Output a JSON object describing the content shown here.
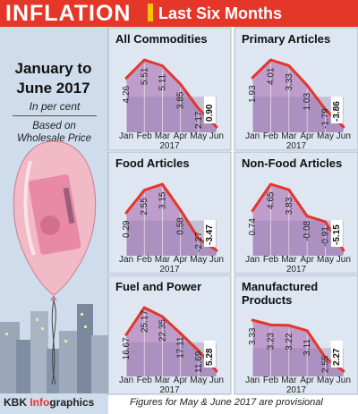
{
  "header": {
    "title": "INFLATION",
    "subtitle": "Last Six Months"
  },
  "sidebar": {
    "period_line1": "January to",
    "period_line2": "June 2017",
    "unit": "In per cent",
    "basis_line1": "Based on",
    "basis_line2": "Wholesale Price Index,",
    "basis_line3": "2011-12=100"
  },
  "footer": {
    "credit_prefix": "KBK ",
    "credit_accent": "Info",
    "credit_suffix": "graphics",
    "note": "Figures for May & June 2017 are provisional"
  },
  "colors": {
    "header_red": "#e5362a",
    "line_red": "#e5362a",
    "area_fill": "#b98fc4",
    "area_shade": "#8c78a8",
    "panel_bg": "#dde6f1",
    "last_value_box": "#ffffff"
  },
  "chart_data": [
    {
      "type": "area",
      "title": "All Commodities",
      "categories": [
        "Jan",
        "Feb",
        "Mar",
        "Apr",
        "May",
        "Jun"
      ],
      "values": [
        4.26,
        5.51,
        5.11,
        3.85,
        2.17,
        0.9
      ],
      "labels": [
        "4.26",
        "5.51",
        "5.11",
        "3.85",
        "2.17",
        "0.90"
      ],
      "xlabel": "2017"
    },
    {
      "type": "area",
      "title": "Primary Articles",
      "categories": [
        "Jan",
        "Feb",
        "Mar",
        "Apr",
        "May",
        "Jun"
      ],
      "values": [
        1.93,
        4.01,
        3.33,
        1.03,
        -1.79,
        -3.86
      ],
      "labels": [
        "1.93",
        "4.01",
        "3.33",
        "1.03",
        "-1.79",
        "-3.86"
      ],
      "xlabel": "2017"
    },
    {
      "type": "area",
      "title": "Food Articles",
      "categories": [
        "Jan",
        "Feb",
        "Mar",
        "Apr",
        "May",
        "Jun"
      ],
      "values": [
        0.29,
        2.55,
        3.15,
        0.58,
        -2.27,
        -3.47
      ],
      "labels": [
        "0.29",
        "2.55",
        "3.15",
        "0.58",
        "-2.27",
        "-3.47"
      ],
      "xlabel": "2017"
    },
    {
      "type": "area",
      "title": "Non-Food Articles",
      "categories": [
        "Jan",
        "Feb",
        "Mar",
        "Apr",
        "May",
        "Jun"
      ],
      "values": [
        0.74,
        4.65,
        3.83,
        -0.08,
        -0.91,
        -5.15
      ],
      "labels": [
        "0.74",
        "4.65",
        "3.83",
        "-0.08",
        "-0.91",
        "-5.15"
      ],
      "xlabel": "2017"
    },
    {
      "type": "area",
      "title": "Fuel and Power",
      "categories": [
        "Jan",
        "Feb",
        "Mar",
        "Apr",
        "May",
        "Jun"
      ],
      "values": [
        16.67,
        25.17,
        22.35,
        17.11,
        11.69,
        5.28
      ],
      "labels": [
        "16.67",
        "25.17",
        "22.35",
        "17.11",
        "11.69",
        "5.28"
      ],
      "xlabel": "2017"
    },
    {
      "type": "area",
      "title": "Manufactured Products",
      "title_lines": [
        "Manufactured",
        "Products"
      ],
      "categories": [
        "Jan",
        "Feb",
        "Mar",
        "Apr",
        "May",
        "Jun"
      ],
      "values": [
        3.33,
        3.23,
        3.22,
        3.11,
        2.55,
        2.27
      ],
      "labels": [
        "3.33",
        "3.23",
        "3.22",
        "3.11",
        "2.55",
        "2.27"
      ],
      "xlabel": "2017"
    }
  ]
}
